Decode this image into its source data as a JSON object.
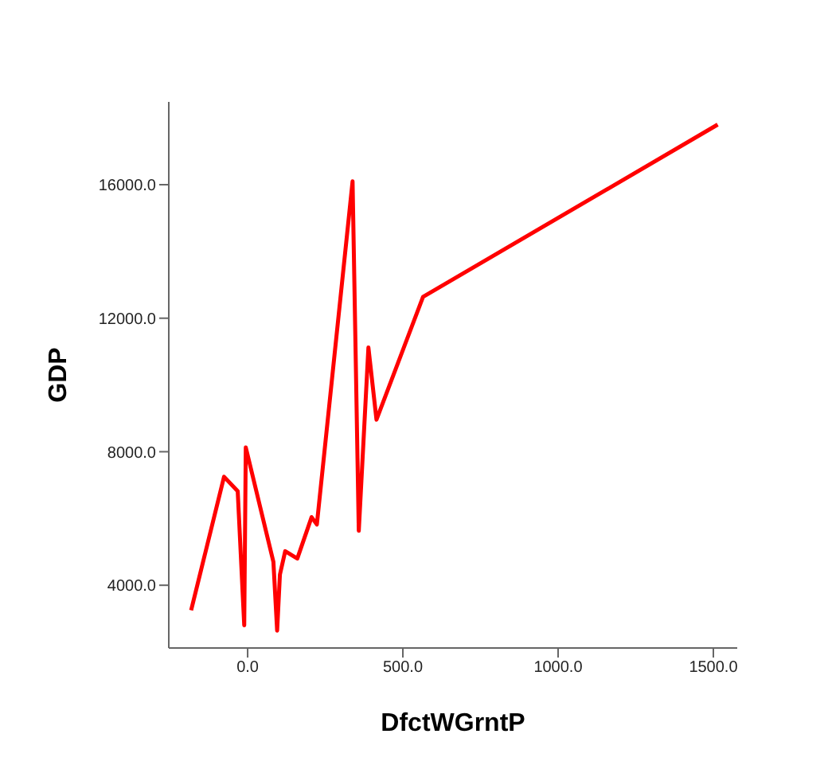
{
  "chart_data": {
    "type": "line",
    "xlabel": "DfctWGrntP",
    "ylabel": "GDP",
    "x": [
      -182,
      -76,
      -32,
      -11,
      -6,
      83,
      95,
      104,
      121,
      160,
      206,
      223,
      338,
      358,
      389,
      415,
      565,
      1514
    ],
    "series": [
      {
        "color": "#ff0000",
        "values": [
          3250,
          7250,
          6820,
          2800,
          8130,
          4700,
          2640,
          4320,
          5020,
          4800,
          6040,
          5820,
          16100,
          5630,
          11120,
          8960,
          12640,
          17800
        ]
      }
    ],
    "xlim": [
      -254,
      1577
    ],
    "ylim": [
      2120,
      18480
    ],
    "xticks": [
      {
        "value": 0,
        "label": "0.0"
      },
      {
        "value": 500,
        "label": "500.0"
      },
      {
        "value": 1000,
        "label": "1000.0"
      },
      {
        "value": 1500,
        "label": "1500.0"
      }
    ],
    "yticks": [
      {
        "value": 4000,
        "label": "4000.0"
      },
      {
        "value": 8000,
        "label": "8000.0"
      },
      {
        "value": 12000,
        "label": "12000.0"
      },
      {
        "value": 16000,
        "label": "16000.0"
      }
    ],
    "grid": false,
    "legend": false,
    "marker": "none",
    "line_style": "solid"
  }
}
